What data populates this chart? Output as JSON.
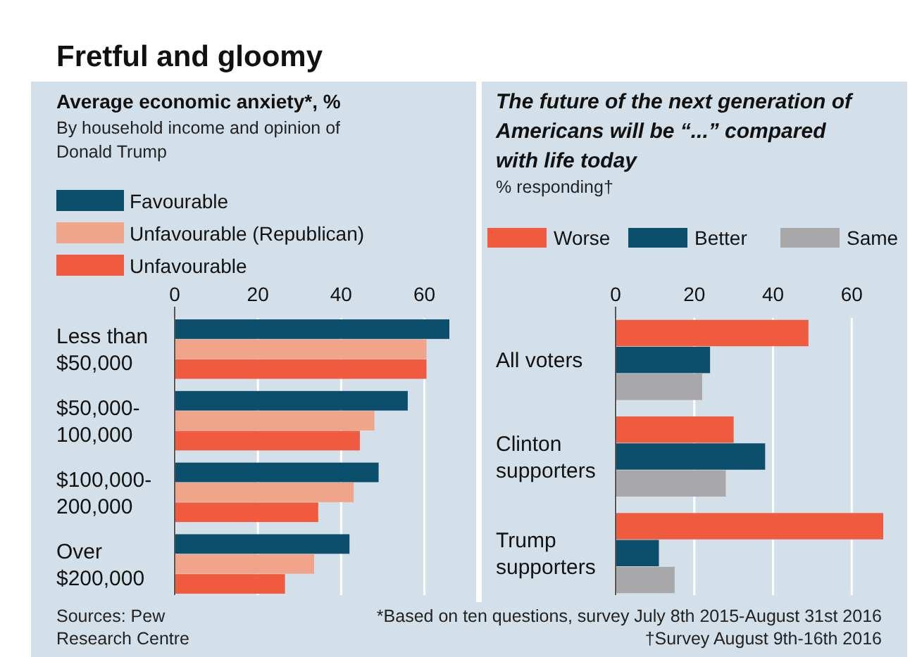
{
  "chart_data": [
    {
      "type": "bar",
      "orientation": "horizontal",
      "title": "Average economic anxiety*, %",
      "subtitle": "By household income and opinion of Donald Trump",
      "categories": [
        "Less than $50,000",
        "$50,000-100,000",
        "$100,000-200,000",
        "Over $200,000"
      ],
      "series": [
        {
          "name": "Favourable",
          "color": "#0b4f6c",
          "values": [
            66,
            56,
            49,
            42
          ]
        },
        {
          "name": "Unfavourable (Republican)",
          "color": "#f0a48a",
          "values": [
            60.5,
            48,
            43,
            33.5
          ]
        },
        {
          "name": "Unfavourable",
          "color": "#f05a3f",
          "values": [
            60.5,
            44.5,
            34.5,
            26.5
          ]
        }
      ],
      "xlim": [
        0,
        66
      ],
      "xticks": [
        0,
        20,
        40,
        60
      ],
      "grid": "x",
      "legend": "top left",
      "annotations": [
        "Fretful and gloomy",
        "Sources: Pew Research Centre"
      ]
    },
    {
      "type": "bar",
      "orientation": "horizontal",
      "title": "The future of the next generation of Americans will be “...” compared with life today",
      "subtitle": "% responding†",
      "categories": [
        "All voters",
        "Clinton supporters",
        "Trump supporters"
      ],
      "series": [
        {
          "name": "Worse",
          "color": "#f05a3f",
          "values": [
            49,
            30,
            68
          ]
        },
        {
          "name": "Better",
          "color": "#0b4f6c",
          "values": [
            24,
            38,
            11
          ]
        },
        {
          "name": "Same",
          "color": "#a8a8ab",
          "values": [
            22,
            28,
            15
          ]
        }
      ],
      "xlim": [
        0,
        68
      ],
      "xticks": [
        0,
        20,
        40,
        60
      ],
      "grid": "x",
      "legend": "top",
      "annotations": [
        "*Based on ten questions, survey July 8th 2015-August 31st 2016",
        "†Survey August 9th-16th 2016"
      ]
    }
  ]
}
